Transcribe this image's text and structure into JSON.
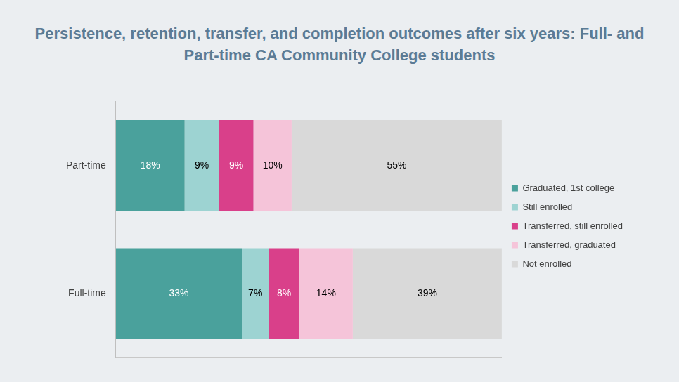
{
  "chart_data": {
    "type": "bar",
    "title": "Persistence, retention, transfer, and completion outcomes after six years: Full- and Part-time CA Community College students",
    "orientation": "horizontal",
    "stacked": true,
    "data_labels": true,
    "grid": false,
    "legend": "right",
    "tick_labels": "y",
    "xlim": [
      0,
      101
    ],
    "categories": [
      "Part-time",
      "Full-time"
    ],
    "series": [
      {
        "name": "Graduated, 1st college",
        "color": "#4aa19c",
        "values": [
          18,
          33
        ],
        "value_labels": [
          "18%",
          "33%"
        ]
      },
      {
        "name": "Still enrolled",
        "color": "#9dd3d2",
        "values": [
          9,
          7
        ],
        "value_labels": [
          "9%",
          "7%"
        ]
      },
      {
        "name": "Transferred, still enrolled",
        "color": "#d9408a",
        "values": [
          9,
          8
        ],
        "value_labels": [
          "9%",
          "8%"
        ]
      },
      {
        "name": "Transferred, graduated",
        "color": "#f5c4d9",
        "values": [
          10,
          14
        ],
        "value_labels": [
          "10%",
          "14%"
        ]
      },
      {
        "name": "Not enrolled",
        "color": "#d9d9d9",
        "values": [
          55,
          39
        ],
        "value_labels": [
          "55%",
          "39%"
        ]
      }
    ]
  }
}
